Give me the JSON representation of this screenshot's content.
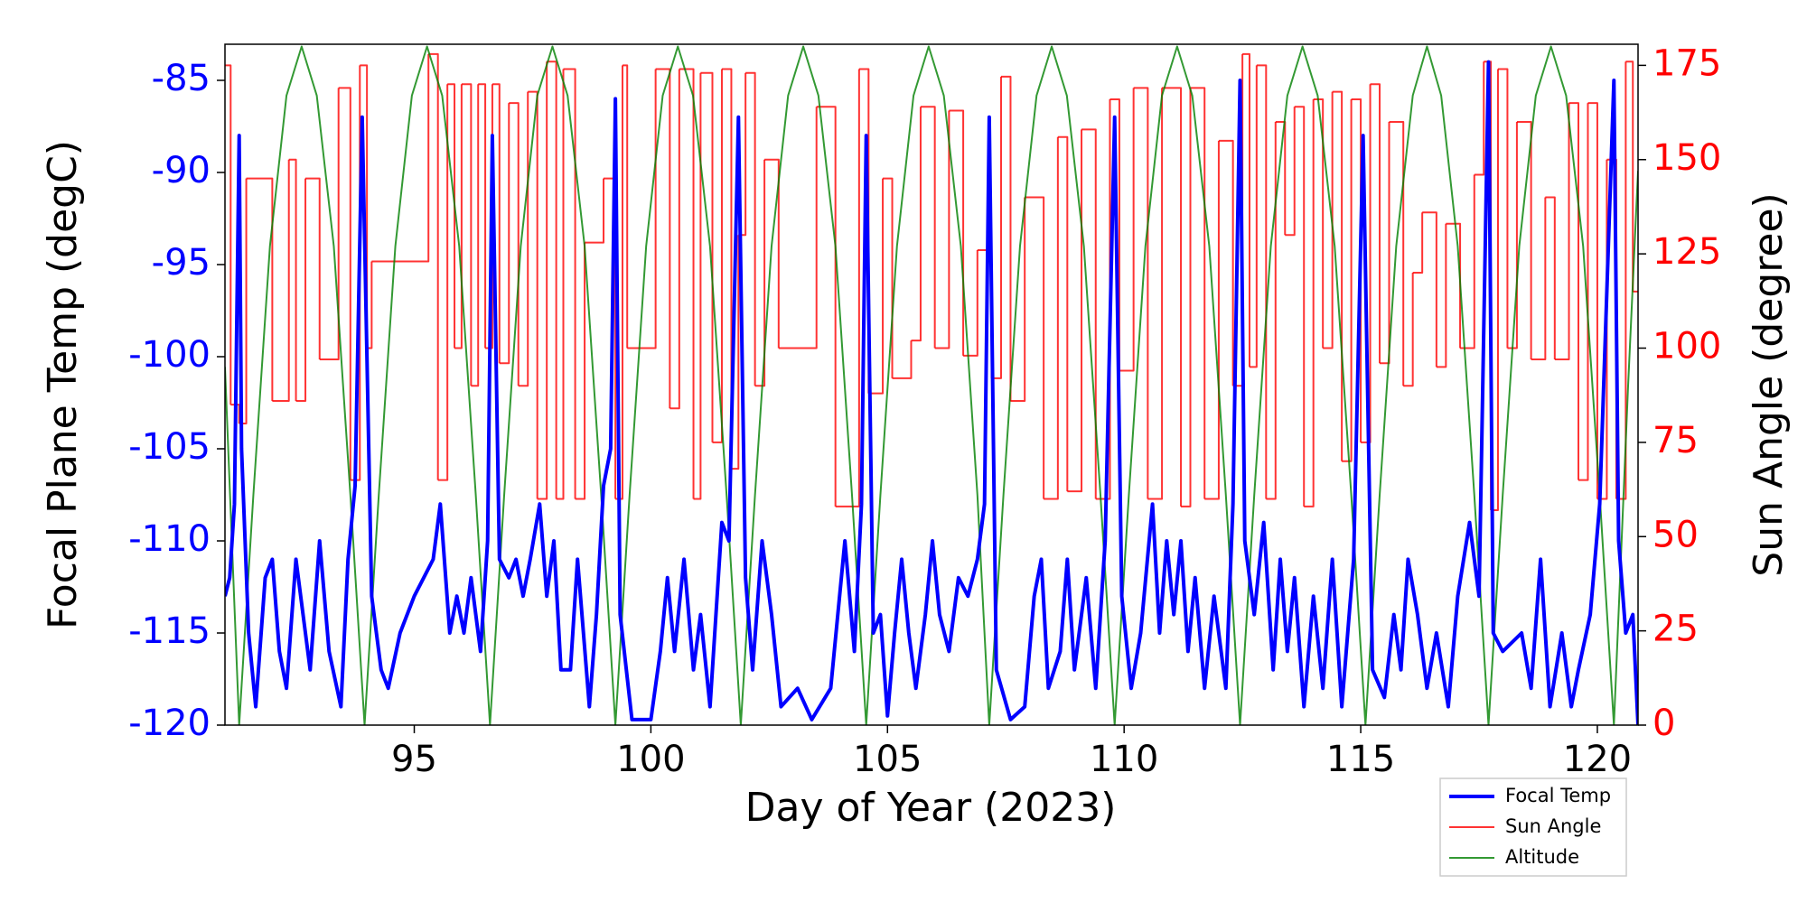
{
  "chart_data": {
    "type": "line",
    "xlabel": "Day of Year (2023)",
    "ylabel": "Focal Plane Temp (degC)",
    "y2label": "Sun Angle (degree)",
    "xlim": [
      91.0,
      120.86
    ],
    "xticks": [
      95,
      100,
      105,
      110,
      115,
      120
    ],
    "ylim": [
      -120,
      -83.04
    ],
    "yticks": [
      -120,
      -115,
      -110,
      -105,
      -100,
      -95,
      -90,
      -85
    ],
    "y2lim": [
      0,
      180.6
    ],
    "y2ticks": [
      0,
      25,
      50,
      75,
      100,
      125,
      150,
      175
    ],
    "ycolor": "#0000ff",
    "y2color": "#ff0000",
    "legend_loc": "lower right",
    "series": [
      {
        "name": "Focal Temp",
        "color": "#0000ff",
        "linewidth": 4,
        "axis": "y",
        "x": [
          91.0,
          91.1,
          91.2,
          91.3,
          91.35,
          91.5,
          91.65,
          91.85,
          92.0,
          92.15,
          92.3,
          92.5,
          92.65,
          92.8,
          93.0,
          93.2,
          93.45,
          93.6,
          93.75,
          93.9,
          94.0,
          94.1,
          94.3,
          94.45,
          94.7,
          95.0,
          95.4,
          95.55,
          95.75,
          95.9,
          96.05,
          96.2,
          96.4,
          96.55,
          96.65,
          96.8,
          97.0,
          97.15,
          97.3,
          97.45,
          97.65,
          97.8,
          97.95,
          98.1,
          98.3,
          98.45,
          98.7,
          98.85,
          99.0,
          99.15,
          99.25,
          99.35,
          99.6,
          100.0,
          100.2,
          100.35,
          100.5,
          100.7,
          100.9,
          101.05,
          101.25,
          101.5,
          101.65,
          101.85,
          102.0,
          102.15,
          102.35,
          102.55,
          102.75,
          103.1,
          103.4,
          103.8,
          104.1,
          104.3,
          104.45,
          104.55,
          104.7,
          104.85,
          105.0,
          105.15,
          105.3,
          105.45,
          105.6,
          105.8,
          105.95,
          106.1,
          106.3,
          106.5,
          106.7,
          106.9,
          107.05,
          107.15,
          107.3,
          107.6,
          107.9,
          108.1,
          108.25,
          108.4,
          108.65,
          108.8,
          108.95,
          109.2,
          109.4,
          109.6,
          109.8,
          109.95,
          110.15,
          110.35,
          110.6,
          110.75,
          110.9,
          111.05,
          111.2,
          111.35,
          111.5,
          111.7,
          111.9,
          112.15,
          112.3,
          112.45,
          112.55,
          112.75,
          112.95,
          113.15,
          113.3,
          113.45,
          113.6,
          113.8,
          114.0,
          114.2,
          114.4,
          114.6,
          114.85,
          115.05,
          115.25,
          115.5,
          115.7,
          115.85,
          116.0,
          116.2,
          116.4,
          116.6,
          116.85,
          117.05,
          117.3,
          117.5,
          117.7,
          117.8,
          118.0,
          118.4,
          118.6,
          118.8,
          119.0,
          119.25,
          119.45,
          119.6,
          119.85,
          120.05,
          120.35,
          120.45,
          120.6,
          120.75,
          120.86
        ],
        "values": [
          -113,
          -112,
          -108,
          -88,
          -105,
          -115,
          -119,
          -112,
          -111,
          -116,
          -118,
          -111,
          -114,
          -117,
          -110,
          -116,
          -119,
          -111,
          -107,
          -87,
          -100,
          -113,
          -117,
          -118,
          -115,
          -113,
          -111,
          -108,
          -115,
          -113,
          -115,
          -112,
          -116,
          -110,
          -88,
          -111,
          -112,
          -111,
          -113,
          -111,
          -108,
          -113,
          -110,
          -117,
          -117,
          -111,
          -119,
          -114,
          -107,
          -105,
          -86,
          -114,
          -119.7,
          -119.7,
          -116,
          -112,
          -116,
          -111,
          -117,
          -114,
          -119,
          -109,
          -110,
          -87,
          -112,
          -117,
          -110,
          -114,
          -119,
          -118,
          -119.7,
          -118,
          -110,
          -116,
          -108,
          -88,
          -115,
          -114,
          -119.5,
          -115,
          -111,
          -115,
          -118,
          -114,
          -110,
          -114,
          -116,
          -112,
          -113,
          -111,
          -108,
          -87,
          -117,
          -119.7,
          -119,
          -113,
          -111,
          -118,
          -116,
          -111,
          -117,
          -112,
          -118,
          -110,
          -87,
          -113,
          -118,
          -115,
          -108,
          -115,
          -110,
          -114,
          -110,
          -116,
          -112,
          -118,
          -113,
          -118,
          -108,
          -85,
          -110,
          -114,
          -109,
          -117,
          -111,
          -116,
          -112,
          -119,
          -113,
          -118,
          -111,
          -119,
          -111,
          -88,
          -117,
          -118.5,
          -114,
          -117,
          -111,
          -114,
          -118,
          -115,
          -119,
          -113,
          -109,
          -113,
          -84,
          -115,
          -116,
          -115,
          -118,
          -111,
          -119,
          -115,
          -119,
          -117,
          -114,
          -108,
          -85,
          -110,
          -115,
          -114,
          -120
        ]
      },
      {
        "name": "Sun Angle",
        "color": "#ff0000",
        "linewidth": 2,
        "opacity": 0.8,
        "axis": "y2",
        "drawstyle": "steps-post",
        "x": [
          91.0,
          91.12,
          91.3,
          91.45,
          92.0,
          92.35,
          92.5,
          92.7,
          93.0,
          93.4,
          93.65,
          93.85,
          94.0,
          94.1,
          95.3,
          95.5,
          95.7,
          95.85,
          96.0,
          96.2,
          96.35,
          96.5,
          96.65,
          96.8,
          97.0,
          97.2,
          97.4,
          97.6,
          97.8,
          98.0,
          98.15,
          98.4,
          98.6,
          99.0,
          99.25,
          99.4,
          99.5,
          100.1,
          100.4,
          100.6,
          100.9,
          101.05,
          101.3,
          101.5,
          101.7,
          101.85,
          102.0,
          102.2,
          102.4,
          102.7,
          103.5,
          103.9,
          104.4,
          104.6,
          104.9,
          105.1,
          105.5,
          105.7,
          106.0,
          106.3,
          106.6,
          106.9,
          107.2,
          107.4,
          107.6,
          107.9,
          108.3,
          108.6,
          108.8,
          109.1,
          109.4,
          109.7,
          109.9,
          110.2,
          110.5,
          110.8,
          111.2,
          111.4,
          111.7,
          112.0,
          112.3,
          112.5,
          112.65,
          112.8,
          113.0,
          113.2,
          113.4,
          113.6,
          113.8,
          114.0,
          114.2,
          114.4,
          114.6,
          114.8,
          115.0,
          115.2,
          115.4,
          115.6,
          115.9,
          116.1,
          116.3,
          116.6,
          116.8,
          117.1,
          117.4,
          117.6,
          117.75,
          117.9,
          118.1,
          118.3,
          118.6,
          118.9,
          119.1,
          119.4,
          119.6,
          119.8,
          120.0,
          120.2,
          120.4,
          120.6,
          120.75,
          120.86
        ],
        "values": [
          175,
          85,
          80,
          145,
          86,
          150,
          86,
          145,
          97,
          169,
          65,
          175,
          100,
          123,
          178,
          65,
          170,
          100,
          170,
          90,
          170,
          100,
          170,
          96,
          165,
          90,
          168,
          60,
          176,
          60,
          174,
          60,
          128,
          145,
          60,
          175,
          100,
          174,
          84,
          174,
          60,
          173,
          75,
          174,
          68,
          130,
          173,
          90,
          150,
          100,
          164,
          58,
          174,
          88,
          145,
          92,
          102,
          164,
          100,
          163,
          98,
          126,
          92,
          172,
          86,
          140,
          60,
          156,
          62,
          158,
          60,
          166,
          94,
          169,
          60,
          169,
          58,
          169,
          60,
          155,
          90,
          178,
          95,
          175,
          60,
          160,
          130,
          164,
          58,
          166,
          100,
          168,
          70,
          166,
          75,
          170,
          96,
          160,
          90,
          120,
          136,
          95,
          133,
          100,
          146,
          176,
          57,
          174,
          100,
          160,
          97,
          140,
          97,
          165,
          65,
          165,
          60,
          150,
          60,
          176,
          115,
          115
        ]
      },
      {
        "name": "Altitude",
        "color": "#008000",
        "linewidth": 2,
        "opacity": 0.8,
        "axis": "y2",
        "x": [
          91.0,
          91.3,
          91.6,
          91.95,
          92.3,
          92.62,
          92.94,
          93.3,
          93.65,
          93.95,
          94.25,
          94.6,
          94.95,
          95.27,
          95.59,
          95.95,
          96.3,
          96.6,
          96.9,
          97.25,
          97.6,
          97.92,
          98.24,
          98.6,
          98.95,
          99.25,
          99.55,
          99.9,
          100.25,
          100.57,
          100.89,
          101.25,
          101.6,
          101.9,
          102.2,
          102.55,
          102.9,
          103.22,
          103.54,
          103.9,
          104.25,
          104.55,
          104.85,
          105.2,
          105.55,
          105.87,
          106.19,
          106.55,
          106.9,
          107.15,
          107.45,
          107.8,
          108.15,
          108.47,
          108.79,
          109.15,
          109.5,
          109.8,
          110.1,
          110.45,
          110.8,
          111.12,
          111.44,
          111.8,
          112.15,
          112.45,
          112.75,
          113.1,
          113.45,
          113.77,
          114.09,
          114.45,
          114.8,
          115.1,
          115.4,
          115.75,
          116.1,
          116.4,
          116.7,
          117.05,
          117.4,
          117.7,
          118.0,
          118.35,
          118.7,
          119.02,
          119.34,
          119.7,
          120.05,
          120.35,
          120.65,
          120.86
        ],
        "values": [
          95,
          0,
          61,
          127,
          167,
          180,
          167,
          127,
          61,
          0,
          61,
          127,
          167,
          180,
          167,
          127,
          61,
          0,
          61,
          127,
          167,
          180,
          167,
          127,
          61,
          0,
          61,
          127,
          167,
          180,
          167,
          127,
          61,
          0,
          61,
          127,
          167,
          180,
          167,
          127,
          61,
          0,
          61,
          127,
          167,
          180,
          167,
          127,
          61,
          0,
          61,
          127,
          167,
          180,
          167,
          127,
          61,
          0,
          61,
          127,
          167,
          180,
          167,
          127,
          61,
          0,
          61,
          127,
          167,
          180,
          167,
          127,
          61,
          0,
          61,
          127,
          167,
          180,
          167,
          127,
          61,
          0,
          61,
          127,
          167,
          180,
          167,
          127,
          61,
          0,
          90,
          147
        ]
      }
    ]
  }
}
